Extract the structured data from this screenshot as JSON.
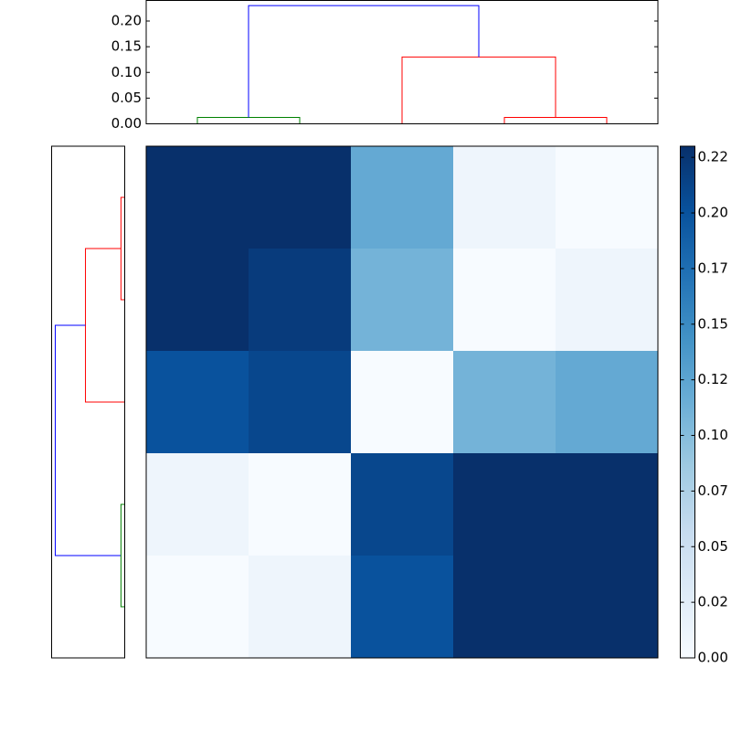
{
  "chart_data": [
    {
      "type": "dendrogram",
      "orientation": "top",
      "xlim": [
        0,
        50
      ],
      "ylim": [
        0,
        0.24
      ],
      "yticks": [
        {
          "value": 0,
          "label": "0.00"
        },
        {
          "value": 0.05,
          "label": "0.05"
        },
        {
          "value": 0.1,
          "label": "0.10"
        },
        {
          "value": 0.15,
          "label": "0.15"
        },
        {
          "value": 0.2,
          "label": "0.20"
        }
      ],
      "links": [
        {
          "color": "#008000",
          "icoord": [
            5,
            5,
            15,
            15
          ],
          "dcoord": [
            0,
            0.0125,
            0.0125,
            0
          ]
        },
        {
          "color": "#ff0000",
          "icoord": [
            35,
            35,
            45,
            45
          ],
          "dcoord": [
            0,
            0.0125,
            0.0125,
            0
          ]
        },
        {
          "color": "#ff0000",
          "icoord": [
            25,
            25,
            40,
            40
          ],
          "dcoord": [
            0,
            0.13,
            0.13,
            0.0125
          ]
        },
        {
          "color": "#0000ff",
          "icoord": [
            10,
            10,
            32.5,
            32.5
          ],
          "dcoord": [
            0.0125,
            0.23,
            0.23,
            0.13
          ]
        }
      ]
    },
    {
      "type": "dendrogram",
      "orientation": "left",
      "xlim": [
        0,
        50
      ],
      "ylim": [
        0,
        0.242
      ],
      "links": [
        {
          "color": "#ff0000",
          "icoord": [
            5,
            5,
            15,
            15
          ],
          "dcoord": [
            0,
            0.0125,
            0.0125,
            0
          ]
        },
        {
          "color": "#ff0000",
          "icoord": [
            10,
            10,
            25,
            25
          ],
          "dcoord": [
            0.0125,
            0.13,
            0.13,
            0
          ]
        },
        {
          "color": "#0000ff",
          "icoord": [
            17.5,
            17.5,
            40,
            40
          ],
          "dcoord": [
            0.13,
            0.23,
            0.23,
            0.0125
          ]
        },
        {
          "color": "#008000",
          "icoord": [
            35,
            35,
            45,
            45
          ],
          "dcoord": [
            0,
            0.0125,
            0.0125,
            0
          ]
        }
      ]
    },
    {
      "type": "heatmap",
      "colormap": "Blues",
      "clim": [
        0,
        0.23
      ],
      "values": [
        [
          0.23,
          0.23,
          0.12,
          0.01,
          0.0
        ],
        [
          0.23,
          0.22,
          0.11,
          0.0,
          0.01
        ],
        [
          0.2,
          0.21,
          0.0,
          0.11,
          0.12
        ],
        [
          0.01,
          0.0,
          0.21,
          0.23,
          0.23
        ],
        [
          0.0,
          0.01,
          0.2,
          0.23,
          0.23
        ]
      ],
      "colorbar_ticks": [
        {
          "value": 0,
          "label": "0.00"
        },
        {
          "value": 0.025,
          "label": "0.02"
        },
        {
          "value": 0.05,
          "label": "0.05"
        },
        {
          "value": 0.075,
          "label": "0.07"
        },
        {
          "value": 0.1,
          "label": "0.10"
        },
        {
          "value": 0.125,
          "label": "0.12"
        },
        {
          "value": 0.15,
          "label": "0.15"
        },
        {
          "value": 0.175,
          "label": "0.17"
        },
        {
          "value": 0.2,
          "label": "0.20"
        },
        {
          "value": 0.225,
          "label": "0.22"
        }
      ]
    }
  ]
}
